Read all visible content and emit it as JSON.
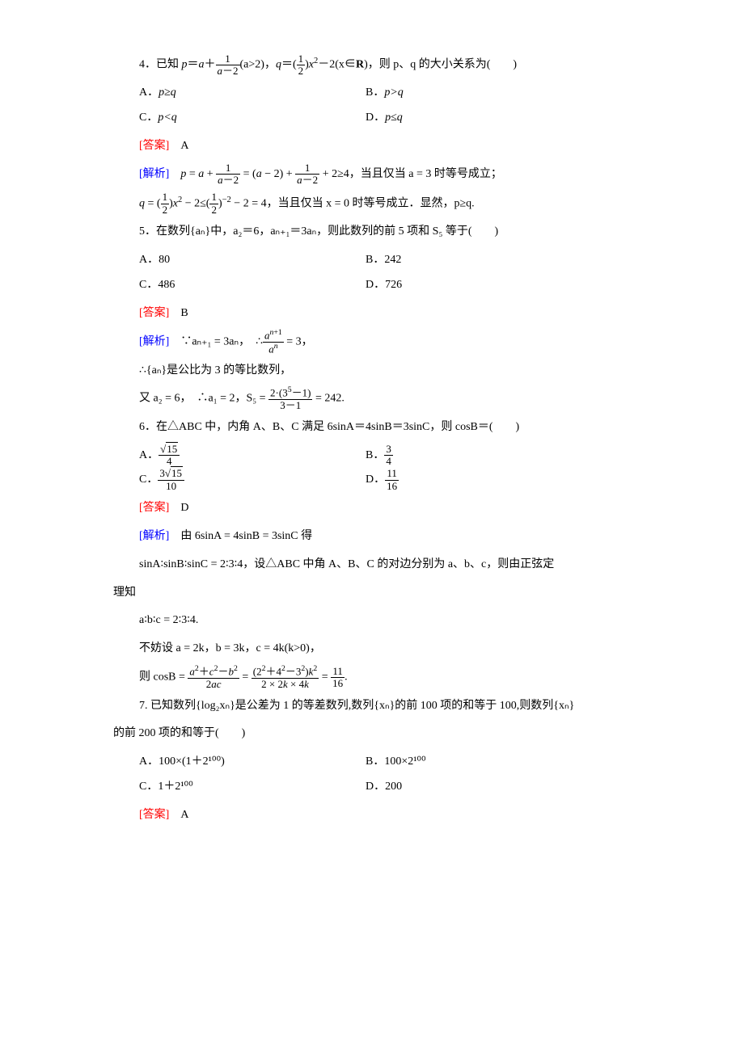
{
  "q4": {
    "stem_prefix": "4．已知 ",
    "stem_mid1": "(a>2)，",
    "stem_mid2": "－2(x∈",
    "stem_suffix": ")，则 p、q 的大小关系为(　　)",
    "optA_label": "A．",
    "optA": "p≥q",
    "optB_label": "B．",
    "optB": "p>q",
    "optC_label": "C．",
    "optC": "p<q",
    "optD_label": "D．",
    "optD": "p≤q",
    "ans_label": "[答案]",
    "ans": "　A",
    "exp_label": "[解析]",
    "exp1_mid": " + 2≥4，当且仅当 a = 3 时等号成立；",
    "exp2_mid": " − 2 = 4，当且仅当 x = 0 时等号成立．显然，p≥q."
  },
  "q5": {
    "stem": "5．在数列{aₙ}中，a₂＝6，aₙ₊₁＝3aₙ，则此数列的前 5 项和 S₅ 等于(　　)",
    "optA": "A．80",
    "optB": "B．242",
    "optC": "C．486",
    "optD": "D．726",
    "ans_label": "[答案]",
    "ans": "　B",
    "exp_label": "[解析]",
    "exp1_pre": "　∵aₙ₊₁ = 3aₙ，　∴",
    "exp1_suf": " = 3，",
    "exp2": "∴{aₙ}是公比为 3 的等比数列，",
    "exp3_pre": "又 a₂ = 6，　∴a₁ = 2，S₅ = ",
    "exp3_suf": " = 242."
  },
  "q6": {
    "stem": "6．在△ABC 中，内角 A、B、C 满足 6sinA＝4sinB＝3sinC，则 cosB＝(　　)",
    "optA_label": "A．",
    "optB_label": "B．",
    "optC_label": "C．",
    "optD_label": "D．",
    "ans_label": "[答案]",
    "ans": "　D",
    "exp_label": "[解析]",
    "exp1": "　由 6sinA = 4sinB = 3sinC 得",
    "exp2": "sinA∶sinB∶sinC = 2∶3∶4，设△ABC 中角 A、B、C 的对边分别为 a、b、c，则由正弦定",
    "exp2b": "理知",
    "exp3": "a∶b∶c = 2∶3∶4.",
    "exp4": "不妨设 a = 2k，b = 3k，c = 4k(k>0)，",
    "exp5_pre": "则 cosB = ",
    "exp5_mid": " = ",
    "exp5_suf": "."
  },
  "q7": {
    "stem1": "7. 已知数列{log₂xₙ}是公差为 1 的等差数列,数列{xₙ}的前 100 项的和等于 100,则数列{xₙ}",
    "stem2": "的前 200 项的和等于(　　)",
    "optA": "A．100×(1＋2¹⁰⁰)",
    "optB": "B．100×2¹⁰⁰",
    "optC": "C．1＋2¹⁰⁰",
    "optD": "D．200",
    "ans_label": "[答案]",
    "ans": "　A"
  },
  "colors": {
    "answer": "#ff0000",
    "explain": "#0000ff",
    "text": "#000000",
    "bg": "#ffffff"
  }
}
